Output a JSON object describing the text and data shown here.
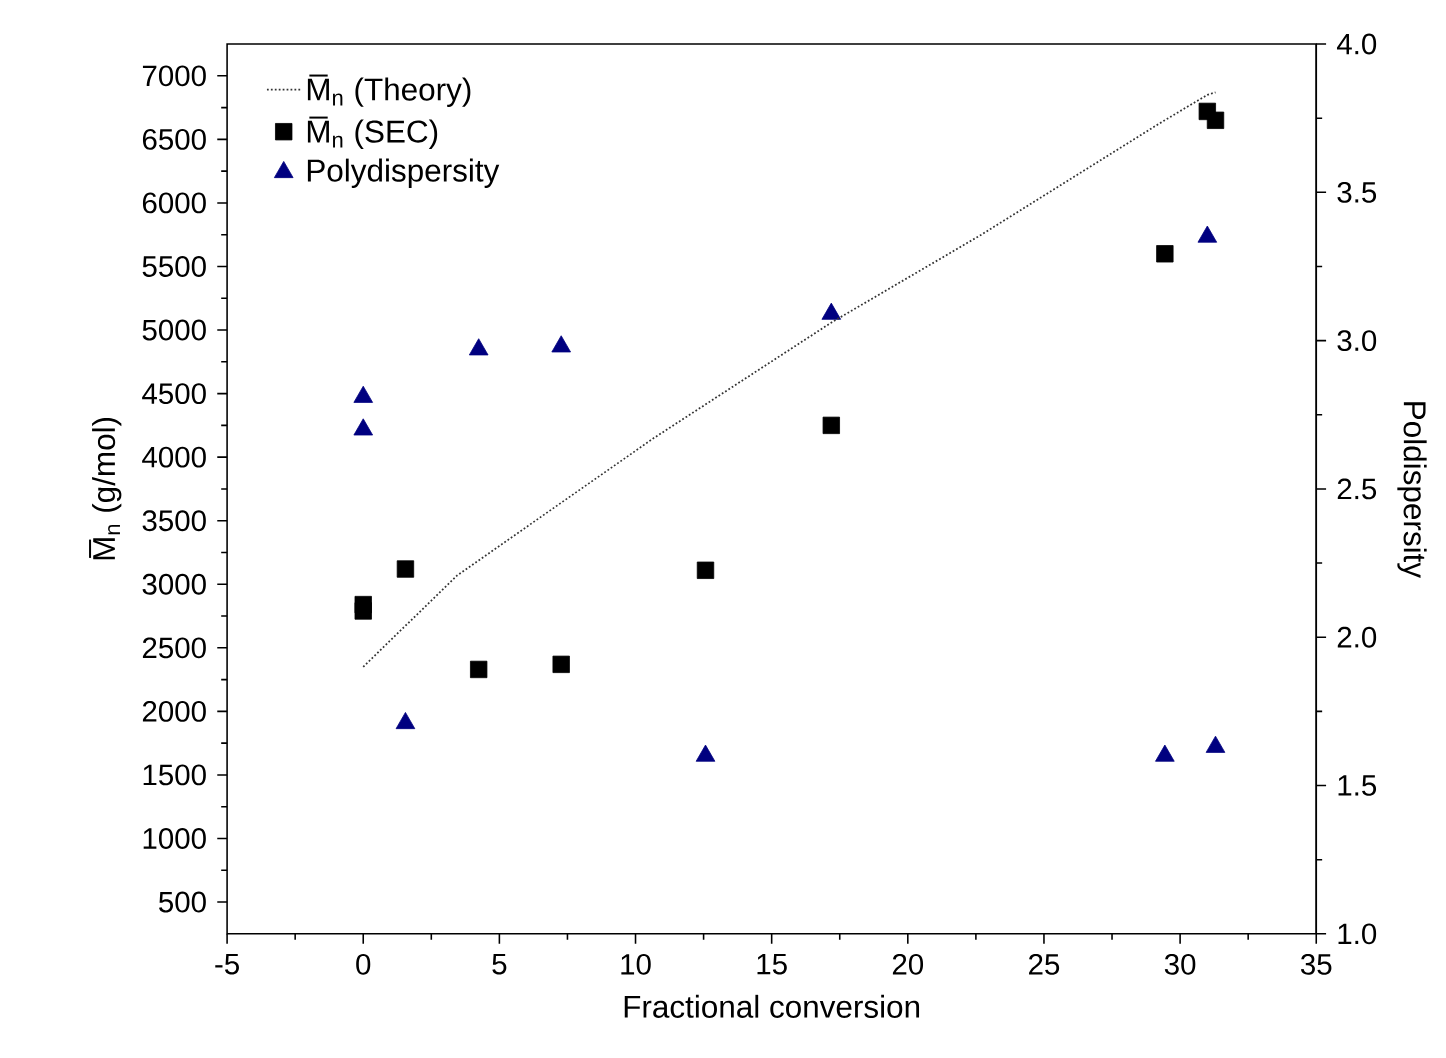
{
  "chart_data": {
    "type": "scatter",
    "xlabel": "Fractional conversion",
    "ylabel": "M̅$_{n}$ (g/mol)",
    "y2label": "Poldispersity",
    "xlim": [
      -5,
      35
    ],
    "xticks": [
      -5,
      0,
      5,
      10,
      15,
      20,
      25,
      30,
      35
    ],
    "ylim": [
      250,
      7250
    ],
    "yticks": [
      500,
      1000,
      1500,
      2000,
      2500,
      3000,
      3500,
      4000,
      4500,
      5000,
      5500,
      6000,
      6500,
      7000
    ],
    "y2lim": [
      1,
      4
    ],
    "y2ticks": [
      {
        "value": 1,
        "label": "1.0"
      },
      {
        "value": 1.5,
        "label": "1.5"
      },
      {
        "value": 2,
        "label": "2.0"
      },
      {
        "value": 2.5,
        "label": "2.5"
      },
      {
        "value": 3,
        "label": "3.0"
      },
      {
        "value": 3.5,
        "label": "3.5"
      },
      {
        "value": 4,
        "label": "4.0"
      }
    ],
    "legend": "top left",
    "series": [
      {
        "name": "M̅$_{n}$ (Theory)",
        "type": "line",
        "line_style": "dotted",
        "marker": "none",
        "color": "#333333",
        "x": [
          0,
          3.45,
          10.67,
          17.2,
          22.7,
          29.2,
          31.0,
          31.3
        ],
        "values": [
          2350,
          3070,
          4150,
          5060,
          5750,
          6620,
          6850,
          6870
        ]
      },
      {
        "name": "M̅$_{n}$ (SEC)",
        "marker": "square",
        "color": "#000000",
        "x": [
          0,
          0,
          1.55,
          4.24,
          7.27,
          12.57,
          17.19,
          29.44,
          31.0,
          31.3
        ],
        "values": [
          2840,
          2790,
          3120,
          2330,
          2370,
          3110,
          4250,
          5600,
          6720,
          6650
        ]
      },
      {
        "name": "Polydispersity",
        "marker": "triangle",
        "color": "#000080",
        "axis": "y2",
        "x": [
          0,
          0,
          1.55,
          4.24,
          7.27,
          12.57,
          17.19,
          29.44,
          31.0,
          31.3
        ],
        "values": [
          2.81,
          2.7,
          1.71,
          2.97,
          2.98,
          1.6,
          3.09,
          1.6,
          3.35,
          1.63
        ]
      }
    ]
  }
}
